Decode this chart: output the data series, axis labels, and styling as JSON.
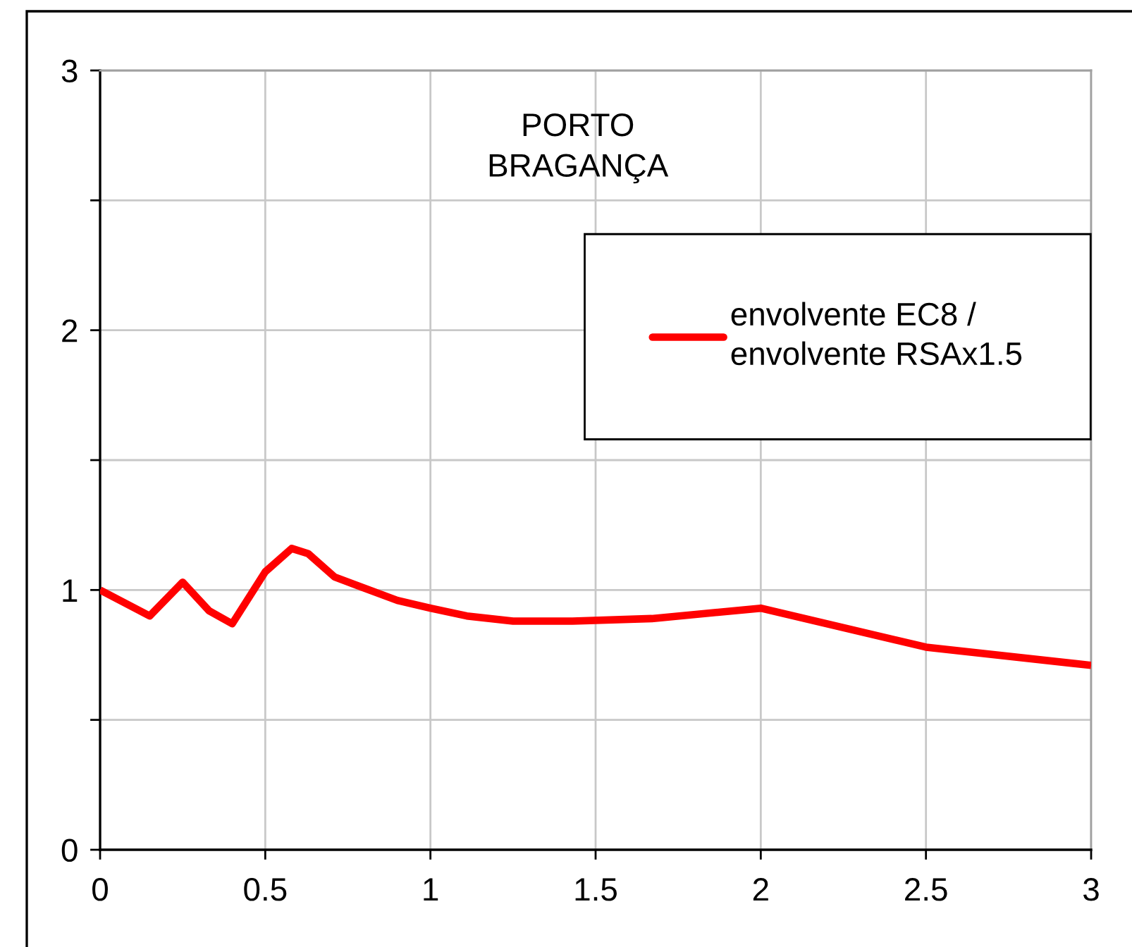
{
  "chart_data": {
    "type": "line",
    "title": "PORTO\nBRAGANÇA",
    "x": [
      0,
      0.15,
      0.25,
      0.33,
      0.4,
      0.5,
      0.58,
      0.63,
      0.71,
      0.9,
      1.0,
      1.11,
      1.25,
      1.43,
      1.67,
      2.0,
      2.5,
      3.0
    ],
    "series": [
      {
        "name": "envolvente EC8 /\nenvolvente RSAx1.5",
        "color": "#ff0000",
        "values": [
          1.0,
          0.9,
          1.03,
          0.92,
          0.87,
          1.07,
          1.16,
          1.14,
          1.05,
          0.96,
          0.93,
          0.9,
          0.88,
          0.88,
          0.89,
          0.93,
          0.78,
          0.71
        ]
      }
    ],
    "xlim": [
      0,
      3
    ],
    "xticks": [
      0,
      0.5,
      1,
      1.5,
      2,
      2.5,
      3
    ],
    "ylim": [
      0,
      3
    ],
    "yticks": [
      0,
      {
        "value": 0.5,
        "label": null
      },
      1,
      {
        "value": 1.5,
        "label": null
      },
      2,
      {
        "value": 2.5,
        "label": null
      },
      3
    ],
    "grid": true,
    "legend": "top right",
    "line_style": "solid"
  }
}
